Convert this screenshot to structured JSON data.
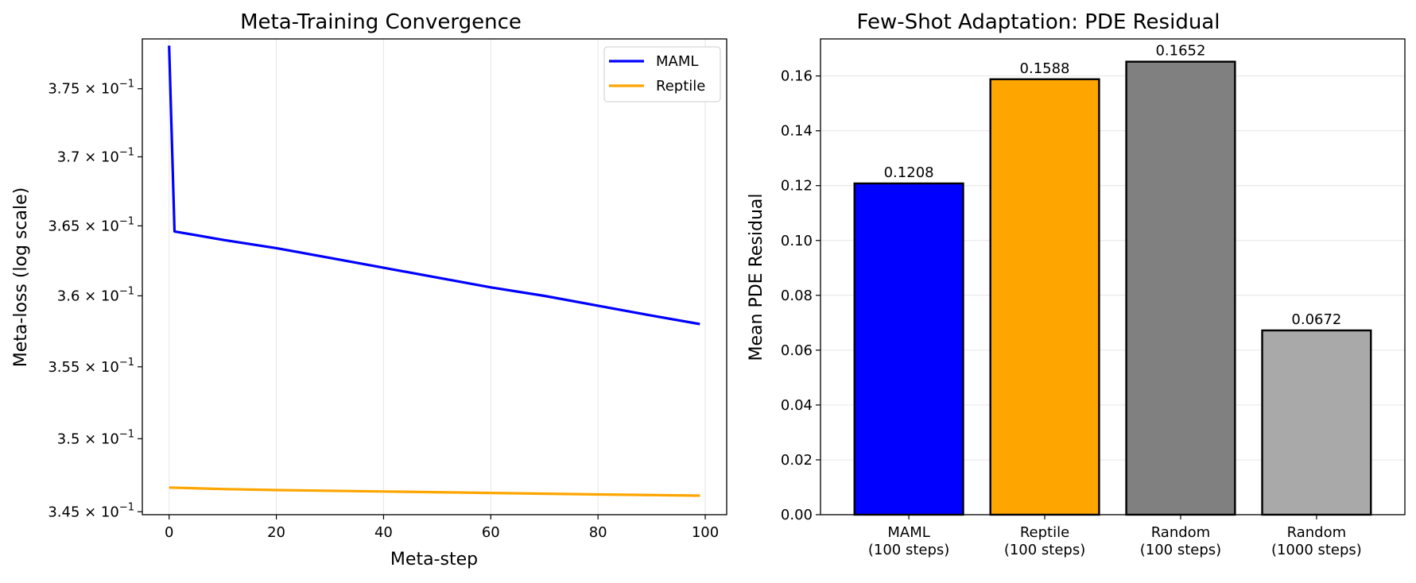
{
  "chart_data": [
    {
      "type": "line",
      "title": "Meta-Training Convergence",
      "xlabel": "Meta-step",
      "ylabel": "Meta-loss (log scale)",
      "yscale": "log",
      "xlim": [
        -5,
        104
      ],
      "ylim": [
        0.3448,
        0.3787
      ],
      "grid": "x-only",
      "legend": "top-right",
      "xticks": [
        0,
        20,
        40,
        60,
        80,
        100
      ],
      "yticks": [
        {
          "value": 0.345,
          "mantissa": "3.45",
          "exp": "−1"
        },
        {
          "value": 0.35,
          "mantissa": "3.5",
          "exp": "−1"
        },
        {
          "value": 0.355,
          "mantissa": "3.55",
          "exp": "−1"
        },
        {
          "value": 0.36,
          "mantissa": "3.6",
          "exp": "−1"
        },
        {
          "value": 0.365,
          "mantissa": "3.65",
          "exp": "−1"
        },
        {
          "value": 0.37,
          "mantissa": "3.7",
          "exp": "−1"
        },
        {
          "value": 0.375,
          "mantissa": "3.75",
          "exp": "−1"
        }
      ],
      "series": [
        {
          "name": "MAML",
          "color": "#0000ff",
          "x": [
            0,
            1,
            10,
            20,
            30,
            40,
            50,
            60,
            70,
            80,
            90,
            99
          ],
          "y": [
            0.3782,
            0.3646,
            0.364,
            0.3634,
            0.3627,
            0.362,
            0.3613,
            0.3606,
            0.36,
            0.3593,
            0.3586,
            0.358
          ]
        },
        {
          "name": "Reptile",
          "color": "#ffa500",
          "x": [
            0,
            10,
            20,
            40,
            60,
            80,
            99
          ],
          "y": [
            0.34665,
            0.34655,
            0.34648,
            0.34638,
            0.34628,
            0.34618,
            0.3461
          ]
        }
      ]
    },
    {
      "type": "bar",
      "title": "Few-Shot Adaptation: PDE Residual",
      "xlabel": "",
      "ylabel": "Mean PDE Residual",
      "ylim": [
        0,
        0.1735
      ],
      "grid": "y-only",
      "yticks": [
        "0.00",
        "0.02",
        "0.04",
        "0.06",
        "0.08",
        "0.10",
        "0.12",
        "0.14",
        "0.16"
      ],
      "categories": [
        [
          "MAML",
          "(100 steps)"
        ],
        [
          "Reptile",
          "(100 steps)"
        ],
        [
          "Random",
          "(100 steps)"
        ],
        [
          "Random",
          "(1000 steps)"
        ]
      ],
      "values": [
        0.1208,
        0.1588,
        0.1652,
        0.0672
      ],
      "value_labels": [
        "0.1208",
        "0.1588",
        "0.1652",
        "0.0672"
      ],
      "colors": [
        "#0000ff",
        "#ffa500",
        "#808080",
        "#a9a9a9"
      ]
    }
  ]
}
